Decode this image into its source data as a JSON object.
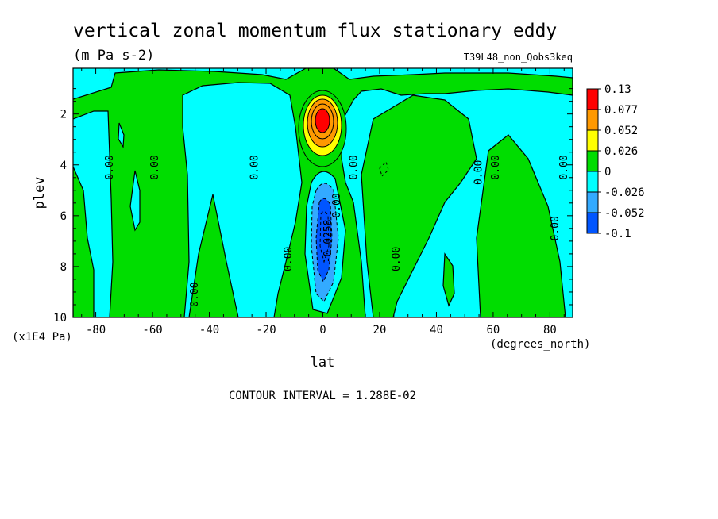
{
  "chart_data": {
    "type": "heatmap",
    "title": "vertical zonal momentum flux stationary eddy",
    "units": "(m Pa s-2)",
    "run_label": "T39L48_non_Qobs3keq",
    "xlabel": "lat",
    "xunits": "(degrees_north)",
    "ylabel": "plev",
    "yunits": "(x1E4 Pa)",
    "xlim": [
      -88,
      88
    ],
    "ylim": [
      10,
      0.2
    ],
    "x_ticks": [
      -80,
      -60,
      -40,
      -20,
      0,
      20,
      40,
      60,
      80
    ],
    "x_tick_labels": [
      "-80",
      "-60",
      "-40",
      "-20",
      "0",
      "20",
      "40",
      "60",
      "80"
    ],
    "y_ticks": [
      2,
      4,
      6,
      8,
      10
    ],
    "y_tick_labels": [
      "2",
      "4",
      "6",
      "8",
      "10"
    ],
    "footer": "CONTOUR INTERVAL = 1.288E-02",
    "colorbar": {
      "labels": [
        "0.13",
        "0.077",
        "0.052",
        "0.026",
        "0",
        "-0.026",
        "-0.052",
        "-0.1"
      ],
      "colors": [
        "#ff0000",
        "#ff9900",
        "#ffff00",
        "#00dd00",
        "#00ffff",
        "#33aaff",
        "#0055ff"
      ]
    },
    "contour_labels": [
      {
        "text": "0.00",
        "x": -74,
        "y": 4.1
      },
      {
        "text": "0.00",
        "x": -58,
        "y": 4.1
      },
      {
        "text": "0.00",
        "x": -23,
        "y": 4.1
      },
      {
        "text": "0.00",
        "x": 12,
        "y": 4.1
      },
      {
        "text": "0.00",
        "x": 56,
        "y": 4.3
      },
      {
        "text": "0.00",
        "x": 62,
        "y": 4.1
      },
      {
        "text": "0.00",
        "x": 86,
        "y": 4.1
      },
      {
        "text": "0.00",
        "x": -44,
        "y": 9.1
      },
      {
        "text": "0.00",
        "x": -11,
        "y": 7.7
      },
      {
        "text": "0.00",
        "x": 6,
        "y": 5.6
      },
      {
        "text": "0.00",
        "x": 27,
        "y": 7.7
      },
      {
        "text": "0.00",
        "x": 83,
        "y": 6.5
      },
      {
        "text": "-0.0258",
        "x": 3,
        "y": 7.0
      }
    ]
  }
}
